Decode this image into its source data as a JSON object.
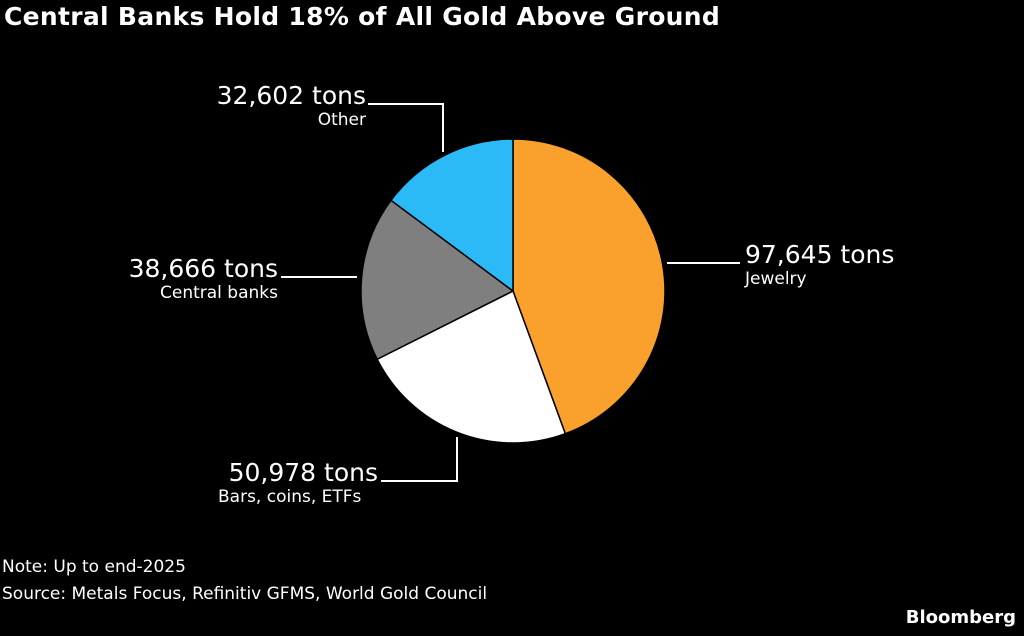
{
  "title": "Central Banks Hold 18% of All Gold Above Ground",
  "chart_data": {
    "type": "pie",
    "title": "Central Banks Hold 18% of All Gold Above Ground",
    "unit": "tons",
    "slices": [
      {
        "label": "Jewelry",
        "value": 97645,
        "display": "97,645 tons",
        "color": "#F9A12C"
      },
      {
        "label": "Bars, coins, ETFs",
        "value": 50978,
        "display": "50,978 tons",
        "color": "#FFFFFF"
      },
      {
        "label": "Central banks",
        "value": 38666,
        "display": "38,666 tons",
        "color": "#7F7F7F"
      },
      {
        "label": "Other",
        "value": 32602,
        "display": "32,602 tons",
        "color": "#2CBAF6"
      }
    ],
    "start": "top",
    "direction": "clockwise"
  },
  "note": "Note: Up to end-2025",
  "source": "Source: Metals Focus, Refinitiv GFMS, World Gold Council",
  "brand": "Bloomberg"
}
